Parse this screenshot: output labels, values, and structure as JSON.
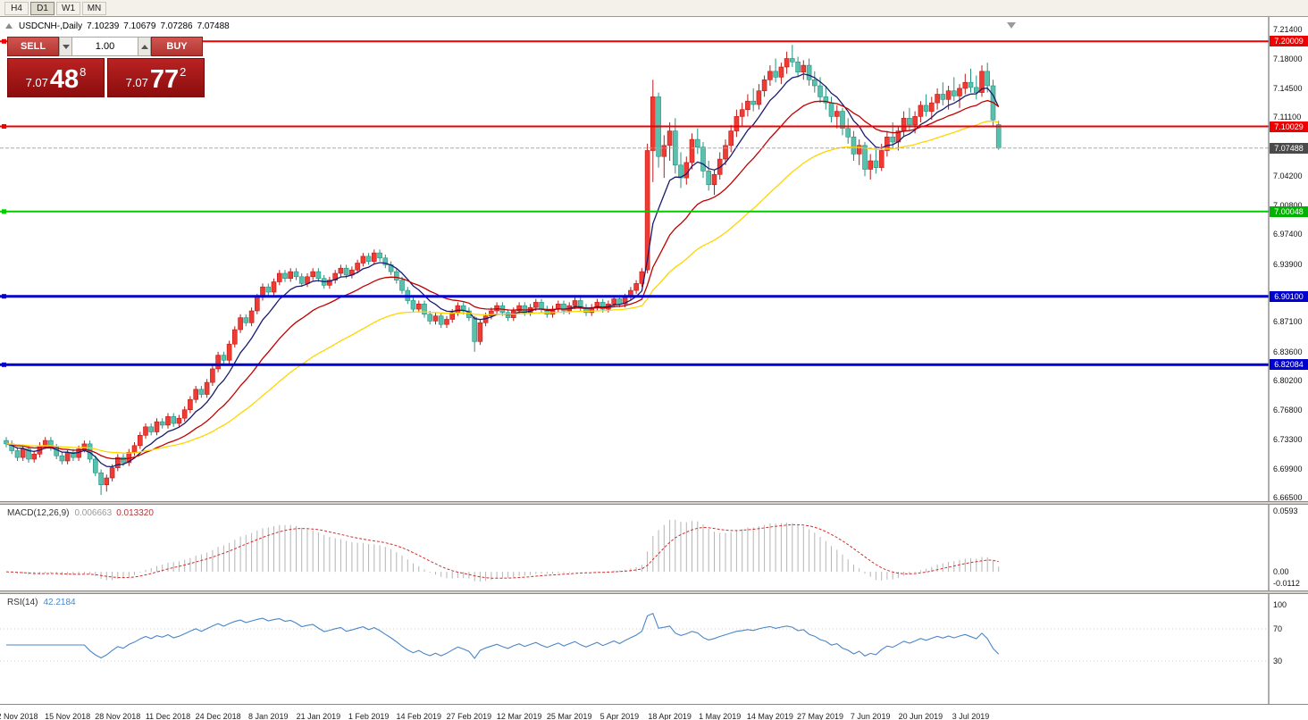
{
  "toolbar": {
    "periods": [
      {
        "label": "H4",
        "active": false
      },
      {
        "label": "D1",
        "active": true
      },
      {
        "label": "W1",
        "active": false
      },
      {
        "label": "MN",
        "active": false
      }
    ]
  },
  "chart_header": {
    "symbol_period": "USDCNH-,Daily",
    "open": "7.10239",
    "high": "7.10679",
    "low": "7.07286",
    "close": "7.07488"
  },
  "one_click": {
    "sell_label": "SELL",
    "buy_label": "BUY",
    "volume": "1.00",
    "sell_price": {
      "prefix": "7.07",
      "big": "48",
      "sup": "8"
    },
    "buy_price": {
      "prefix": "7.07",
      "big": "77",
      "sup": "2"
    }
  },
  "chart_data": {
    "type": "candlestick",
    "title": "USDCNH-,Daily",
    "ohlc_display": {
      "open": "7.10239",
      "high": "7.10679",
      "low": "7.07286",
      "close": "7.07488"
    },
    "y_axis": {
      "max": 7.214,
      "min": 6.665,
      "ticks": [
        "7.21400",
        "7.18000",
        "7.14500",
        "7.11100",
        "7.04200",
        "7.00800",
        "6.97400",
        "6.93900",
        "6.87100",
        "6.83600",
        "6.80200",
        "6.76800",
        "6.73300",
        "6.69900",
        "6.66500"
      ]
    },
    "x_axis": {
      "labels": [
        {
          "bar": 2,
          "text": "2 Nov 2018"
        },
        {
          "bar": 11,
          "text": "15 Nov 2018"
        },
        {
          "bar": 20,
          "text": "28 Nov 2018"
        },
        {
          "bar": 29,
          "text": "11 Dec 2018"
        },
        {
          "bar": 38,
          "text": "24 Dec 2018"
        },
        {
          "bar": 47,
          "text": "8 Jan 2019"
        },
        {
          "bar": 56,
          "text": "21 Jan 2019"
        },
        {
          "bar": 65,
          "text": "1 Feb 2019"
        },
        {
          "bar": 74,
          "text": "14 Feb 2019"
        },
        {
          "bar": 83,
          "text": "27 Feb 2019"
        },
        {
          "bar": 92,
          "text": "12 Mar 2019"
        },
        {
          "bar": 101,
          "text": "25 Mar 2019"
        },
        {
          "bar": 110,
          "text": "5 Apr 2019"
        },
        {
          "bar": 119,
          "text": "18 Apr 2019"
        },
        {
          "bar": 128,
          "text": "1 May 2019"
        },
        {
          "bar": 137,
          "text": "14 May 2019"
        },
        {
          "bar": 146,
          "text": "27 May 2019"
        },
        {
          "bar": 155,
          "text": "7 Jun 2019"
        },
        {
          "bar": 164,
          "text": "20 Jun 2019"
        },
        {
          "bar": 173,
          "text": "3 Jul 2019"
        }
      ]
    },
    "styles": {
      "up": "#ef3b31",
      "up_border": "#b71c1c",
      "down": "#57c1ae",
      "down_border": "#23917f"
    },
    "moving_averages": [
      {
        "period": 8,
        "color": "#1b1b70"
      },
      {
        "period": 20,
        "color": "#c00000"
      },
      {
        "period": 45,
        "color": "#ffd500"
      }
    ],
    "horizontal_lines": [
      {
        "price": 7.20009,
        "color": "#ee0000",
        "width": 2
      },
      {
        "price": 7.10029,
        "color": "#ee0000",
        "width": 2
      },
      {
        "price": 7.00048,
        "color": "#00cc00",
        "width": 2
      },
      {
        "price": 6.901,
        "color": "#0000cc",
        "width": 3
      },
      {
        "price": 6.82084,
        "color": "#0000cc",
        "width": 3
      }
    ],
    "bid_line": {
      "price": 7.07488,
      "color": "#aaaaaa"
    },
    "price_badges": [
      {
        "price": 7.20009,
        "text": "7.20009",
        "color": "#ee0000"
      },
      {
        "price": 7.10029,
        "text": "7.10029",
        "color": "#ee0000"
      },
      {
        "price": 7.07488,
        "text": "7.07488",
        "color": "#4a4a4a"
      },
      {
        "price": 7.00048,
        "text": "7.00048",
        "color": "#00b300"
      },
      {
        "price": 6.901,
        "text": "6.90100",
        "color": "#0000cc"
      },
      {
        "price": 6.82084,
        "text": "6.82084",
        "color": "#0000cc"
      }
    ],
    "macd": {
      "label": "MACD(12,26,9)",
      "value_main": "0.006663",
      "value_signal": "0.013320",
      "fast": 12,
      "slow": 26,
      "smooth": 9,
      "scale_max": 0.0593,
      "scale_min": -0.0112,
      "ticks": [
        {
          "v": 0.0593,
          "text": "0.0593"
        },
        {
          "v": 0,
          "text": "0.00"
        },
        {
          "v": -0.0112,
          "text": "-0.0112"
        }
      ],
      "histogram_color": "#b4b4b4",
      "signal_color": "#d03030"
    },
    "rsi": {
      "label": "RSI(14)",
      "value": "42.2184",
      "period": 14,
      "line_color": "#4a86c8",
      "levels": [
        {
          "v": 100,
          "text": "100"
        },
        {
          "v": 70,
          "text": "70"
        },
        {
          "v": 30,
          "text": "30"
        }
      ]
    },
    "candles": [
      [
        6.732,
        6.736,
        6.724,
        6.728
      ],
      [
        6.728,
        6.732,
        6.716,
        6.72
      ],
      [
        6.72,
        6.724,
        6.708,
        6.712
      ],
      [
        6.712,
        6.726,
        6.708,
        6.722
      ],
      [
        6.722,
        6.726,
        6.706,
        6.71
      ],
      [
        6.71,
        6.72,
        6.706,
        6.716
      ],
      [
        6.716,
        6.73,
        6.712,
        6.726
      ],
      [
        6.726,
        6.736,
        6.722,
        6.732
      ],
      [
        6.732,
        6.736,
        6.72,
        6.724
      ],
      [
        6.724,
        6.728,
        6.71,
        6.714
      ],
      [
        6.714,
        6.718,
        6.704,
        6.708
      ],
      [
        6.708,
        6.722,
        6.704,
        6.718
      ],
      [
        6.718,
        6.722,
        6.708,
        6.712
      ],
      [
        6.712,
        6.726,
        6.708,
        6.722
      ],
      [
        6.722,
        6.732,
        6.718,
        6.728
      ],
      [
        6.728,
        6.732,
        6.706,
        6.71
      ],
      [
        6.71,
        6.714,
        6.69,
        6.694
      ],
      [
        6.694,
        6.698,
        6.668,
        6.68
      ],
      [
        6.68,
        6.692,
        6.672,
        6.688
      ],
      [
        6.688,
        6.704,
        6.684,
        6.7
      ],
      [
        6.7,
        6.716,
        6.696,
        6.712
      ],
      [
        6.712,
        6.716,
        6.702,
        6.706
      ],
      [
        6.706,
        6.722,
        6.702,
        6.718
      ],
      [
        6.718,
        6.73,
        6.714,
        6.726
      ],
      [
        6.726,
        6.742,
        6.722,
        6.738
      ],
      [
        6.738,
        6.752,
        6.734,
        6.748
      ],
      [
        6.748,
        6.752,
        6.738,
        6.742
      ],
      [
        6.742,
        6.758,
        6.738,
        6.754
      ],
      [
        6.754,
        6.758,
        6.746,
        6.75
      ],
      [
        6.75,
        6.764,
        6.746,
        6.76
      ],
      [
        6.76,
        6.764,
        6.748,
        6.752
      ],
      [
        6.752,
        6.762,
        6.748,
        6.758
      ],
      [
        6.758,
        6.772,
        6.754,
        6.768
      ],
      [
        6.768,
        6.784,
        6.764,
        6.78
      ],
      [
        6.78,
        6.796,
        6.776,
        6.792
      ],
      [
        6.792,
        6.796,
        6.782,
        6.786
      ],
      [
        6.786,
        6.804,
        6.782,
        6.8
      ],
      [
        6.8,
        6.82,
        6.796,
        6.816
      ],
      [
        6.816,
        6.836,
        6.812,
        6.832
      ],
      [
        6.832,
        6.836,
        6.822,
        6.826
      ],
      [
        6.826,
        6.849,
        6.822,
        6.845
      ],
      [
        6.845,
        6.866,
        6.841,
        6.862
      ],
      [
        6.862,
        6.88,
        6.858,
        6.876
      ],
      [
        6.876,
        6.88,
        6.866,
        6.87
      ],
      [
        6.87,
        6.888,
        6.866,
        6.884
      ],
      [
        6.884,
        6.904,
        6.88,
        6.9
      ],
      [
        6.9,
        6.916,
        6.896,
        6.912
      ],
      [
        6.912,
        6.916,
        6.902,
        6.906
      ],
      [
        6.906,
        6.922,
        6.902,
        6.918
      ],
      [
        6.918,
        6.932,
        6.914,
        6.928
      ],
      [
        6.928,
        6.932,
        6.918,
        6.922
      ],
      [
        6.922,
        6.934,
        6.918,
        6.93
      ],
      [
        6.93,
        6.934,
        6.92,
        6.924
      ],
      [
        6.924,
        6.928,
        6.912,
        6.916
      ],
      [
        6.916,
        6.928,
        6.912,
        6.924
      ],
      [
        6.924,
        6.934,
        6.92,
        6.93
      ],
      [
        6.93,
        6.934,
        6.918,
        6.922
      ],
      [
        6.922,
        6.926,
        6.91,
        6.914
      ],
      [
        6.914,
        6.924,
        6.91,
        6.92
      ],
      [
        6.92,
        6.932,
        6.916,
        6.928
      ],
      [
        6.928,
        6.938,
        6.924,
        6.934
      ],
      [
        6.934,
        6.938,
        6.922,
        6.926
      ],
      [
        6.926,
        6.936,
        6.922,
        6.932
      ],
      [
        6.932,
        6.944,
        6.928,
        6.94
      ],
      [
        6.94,
        6.952,
        6.936,
        6.948
      ],
      [
        6.948,
        6.952,
        6.938,
        6.942
      ],
      [
        6.942,
        6.956,
        6.938,
        6.952
      ],
      [
        6.952,
        6.956,
        6.942,
        6.946
      ],
      [
        6.946,
        6.95,
        6.934,
        6.938
      ],
      [
        6.938,
        6.942,
        6.926,
        6.93
      ],
      [
        6.93,
        6.934,
        6.916,
        6.92
      ],
      [
        6.92,
        6.924,
        6.904,
        6.908
      ],
      [
        6.908,
        6.912,
        6.892,
        6.896
      ],
      [
        6.896,
        6.9,
        6.882,
        6.886
      ],
      [
        6.886,
        6.896,
        6.882,
        6.892
      ],
      [
        6.892,
        6.896,
        6.876,
        6.88
      ],
      [
        6.88,
        6.884,
        6.868,
        6.872
      ],
      [
        6.872,
        6.882,
        6.868,
        6.878
      ],
      [
        6.878,
        6.882,
        6.864,
        6.868
      ],
      [
        6.868,
        6.878,
        6.864,
        6.874
      ],
      [
        6.874,
        6.886,
        6.87,
        6.882
      ],
      [
        6.882,
        6.894,
        6.878,
        6.89
      ],
      [
        6.89,
        6.894,
        6.88,
        6.884
      ],
      [
        6.884,
        6.888,
        6.872,
        6.876
      ],
      [
        6.876,
        6.878,
        6.836,
        6.848
      ],
      [
        6.848,
        6.874,
        6.844,
        6.87
      ],
      [
        6.87,
        6.882,
        6.866,
        6.878
      ],
      [
        6.878,
        6.888,
        6.874,
        6.884
      ],
      [
        6.884,
        6.894,
        6.88,
        6.89
      ],
      [
        6.89,
        6.894,
        6.878,
        6.882
      ],
      [
        6.882,
        6.886,
        6.872,
        6.876
      ],
      [
        6.876,
        6.888,
        6.872,
        6.884
      ],
      [
        6.884,
        6.894,
        6.88,
        6.89
      ],
      [
        6.89,
        6.894,
        6.878,
        6.882
      ],
      [
        6.882,
        6.892,
        6.878,
        6.888
      ],
      [
        6.888,
        6.898,
        6.884,
        6.894
      ],
      [
        6.894,
        6.898,
        6.882,
        6.886
      ],
      [
        6.886,
        6.89,
        6.876,
        6.88
      ],
      [
        6.88,
        6.89,
        6.876,
        6.886
      ],
      [
        6.886,
        6.896,
        6.882,
        6.892
      ],
      [
        6.892,
        6.896,
        6.88,
        6.884
      ],
      [
        6.884,
        6.894,
        6.88,
        6.89
      ],
      [
        6.89,
        6.9,
        6.886,
        6.896
      ],
      [
        6.896,
        6.9,
        6.884,
        6.888
      ],
      [
        6.888,
        6.892,
        6.878,
        6.882
      ],
      [
        6.882,
        6.892,
        6.878,
        6.888
      ],
      [
        6.888,
        6.898,
        6.884,
        6.894
      ],
      [
        6.894,
        6.898,
        6.882,
        6.886
      ],
      [
        6.886,
        6.896,
        6.882,
        6.892
      ],
      [
        6.892,
        6.902,
        6.888,
        6.898
      ],
      [
        6.898,
        6.902,
        6.888,
        6.892
      ],
      [
        6.892,
        6.904,
        6.888,
        6.9
      ],
      [
        6.9,
        6.912,
        6.896,
        6.908
      ],
      [
        6.908,
        6.92,
        6.904,
        6.916
      ],
      [
        6.916,
        6.934,
        6.912,
        6.93
      ],
      [
        6.932,
        7.08,
        6.928,
        7.072
      ],
      [
        7.072,
        7.155,
        7.035,
        7.135
      ],
      [
        7.135,
        7.14,
        7.052,
        7.065
      ],
      [
        7.065,
        7.09,
        7.04,
        7.078
      ],
      [
        7.078,
        7.105,
        7.06,
        7.095
      ],
      [
        7.095,
        7.11,
        7.045,
        7.055
      ],
      [
        7.055,
        7.07,
        7.028,
        7.04
      ],
      [
        7.04,
        7.065,
        7.032,
        7.058
      ],
      [
        7.058,
        7.092,
        7.05,
        7.085
      ],
      [
        7.085,
        7.098,
        7.068,
        7.076
      ],
      [
        7.076,
        7.082,
        7.04,
        7.048
      ],
      [
        7.048,
        7.06,
        7.025,
        7.032
      ],
      [
        7.032,
        7.05,
        7.02,
        7.044
      ],
      [
        7.044,
        7.07,
        7.038,
        7.062
      ],
      [
        7.062,
        7.085,
        7.055,
        7.078
      ],
      [
        7.078,
        7.102,
        7.07,
        7.095
      ],
      [
        7.095,
        7.12,
        7.088,
        7.112
      ],
      [
        7.112,
        7.128,
        7.1,
        7.12
      ],
      [
        7.12,
        7.138,
        7.112,
        7.13
      ],
      [
        7.13,
        7.145,
        7.118,
        7.126
      ],
      [
        7.126,
        7.15,
        7.12,
        7.142
      ],
      [
        7.142,
        7.16,
        7.135,
        7.155
      ],
      [
        7.155,
        7.172,
        7.148,
        7.165
      ],
      [
        7.165,
        7.18,
        7.152,
        7.158
      ],
      [
        7.158,
        7.175,
        7.15,
        7.17
      ],
      [
        7.17,
        7.188,
        7.162,
        7.18
      ],
      [
        7.18,
        7.196,
        7.17,
        7.176
      ],
      [
        7.176,
        7.182,
        7.158,
        7.164
      ],
      [
        7.164,
        7.178,
        7.155,
        7.172
      ],
      [
        7.172,
        7.18,
        7.148,
        7.155
      ],
      [
        7.155,
        7.165,
        7.14,
        7.148
      ],
      [
        7.148,
        7.158,
        7.128,
        7.135
      ],
      [
        7.135,
        7.148,
        7.12,
        7.128
      ],
      [
        7.128,
        7.135,
        7.105,
        7.112
      ],
      [
        7.112,
        7.125,
        7.098,
        7.118
      ],
      [
        7.118,
        7.122,
        7.09,
        7.098
      ],
      [
        7.098,
        7.11,
        7.08,
        7.088
      ],
      [
        7.088,
        7.095,
        7.06,
        7.068
      ],
      [
        7.068,
        7.085,
        7.055,
        7.078
      ],
      [
        7.078,
        7.082,
        7.042,
        7.05
      ],
      [
        7.05,
        7.068,
        7.038,
        7.06
      ],
      [
        7.06,
        7.075,
        7.045,
        7.052
      ],
      [
        7.052,
        7.08,
        7.048,
        7.072
      ],
      [
        7.072,
        7.095,
        7.065,
        7.088
      ],
      [
        7.088,
        7.105,
        7.075,
        7.082
      ],
      [
        7.082,
        7.1,
        7.072,
        7.095
      ],
      [
        7.095,
        7.118,
        7.088,
        7.11
      ],
      [
        7.11,
        7.122,
        7.095,
        7.102
      ],
      [
        7.102,
        7.118,
        7.092,
        7.112
      ],
      [
        7.112,
        7.13,
        7.105,
        7.125
      ],
      [
        7.125,
        7.138,
        7.112,
        7.118
      ],
      [
        7.118,
        7.135,
        7.108,
        7.128
      ],
      [
        7.128,
        7.145,
        7.12,
        7.138
      ],
      [
        7.138,
        7.152,
        7.125,
        7.132
      ],
      [
        7.132,
        7.148,
        7.12,
        7.142
      ],
      [
        7.142,
        7.158,
        7.13,
        7.136
      ],
      [
        7.136,
        7.15,
        7.122,
        7.145
      ],
      [
        7.145,
        7.162,
        7.138,
        7.152
      ],
      [
        7.152,
        7.168,
        7.14,
        7.146
      ],
      [
        7.146,
        7.16,
        7.132,
        7.14
      ],
      [
        7.14,
        7.172,
        7.135,
        7.165
      ],
      [
        7.165,
        7.175,
        7.14,
        7.148
      ],
      [
        7.148,
        7.155,
        7.1,
        7.108
      ],
      [
        7.10239,
        7.10679,
        7.07286,
        7.07488
      ]
    ]
  }
}
